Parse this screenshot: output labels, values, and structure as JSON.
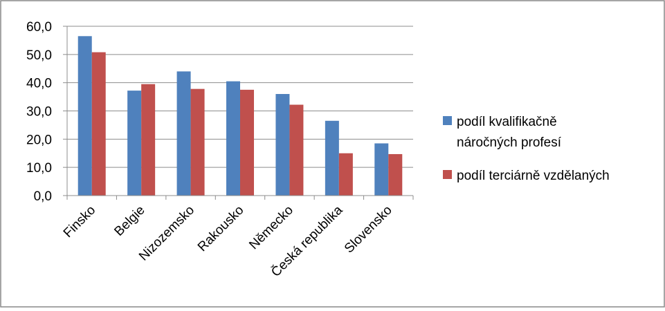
{
  "chart_data": {
    "type": "bar",
    "title": "",
    "xlabel": "",
    "ylabel": "",
    "categories": [
      "Finsko",
      "Belgie",
      "Nizozemsko",
      "Rakousko",
      "Německo",
      "Česká republika",
      "Slovensko"
    ],
    "series": [
      {
        "name": "podíl kvalifikačně náročných profesí",
        "color": "#4F81BD",
        "values": [
          56.5,
          37.2,
          44.0,
          40.5,
          36.0,
          26.5,
          18.5
        ]
      },
      {
        "name": "podíl terciárně vzdělaných",
        "color": "#C0504D",
        "values": [
          50.8,
          39.5,
          37.8,
          37.5,
          32.2,
          15.0,
          14.7
        ]
      }
    ],
    "ylim": [
      0,
      60
    ],
    "yticks": [
      "0,0",
      "10,0",
      "20,0",
      "30,0",
      "40,0",
      "50,0",
      "60,0"
    ],
    "grid": true,
    "legend": "right"
  },
  "legend": {
    "series1_line1": "podíl kvalifikačně",
    "series1_line2": "náročných profesí",
    "series2_line1": "podíl terciárně vzdělaných"
  }
}
